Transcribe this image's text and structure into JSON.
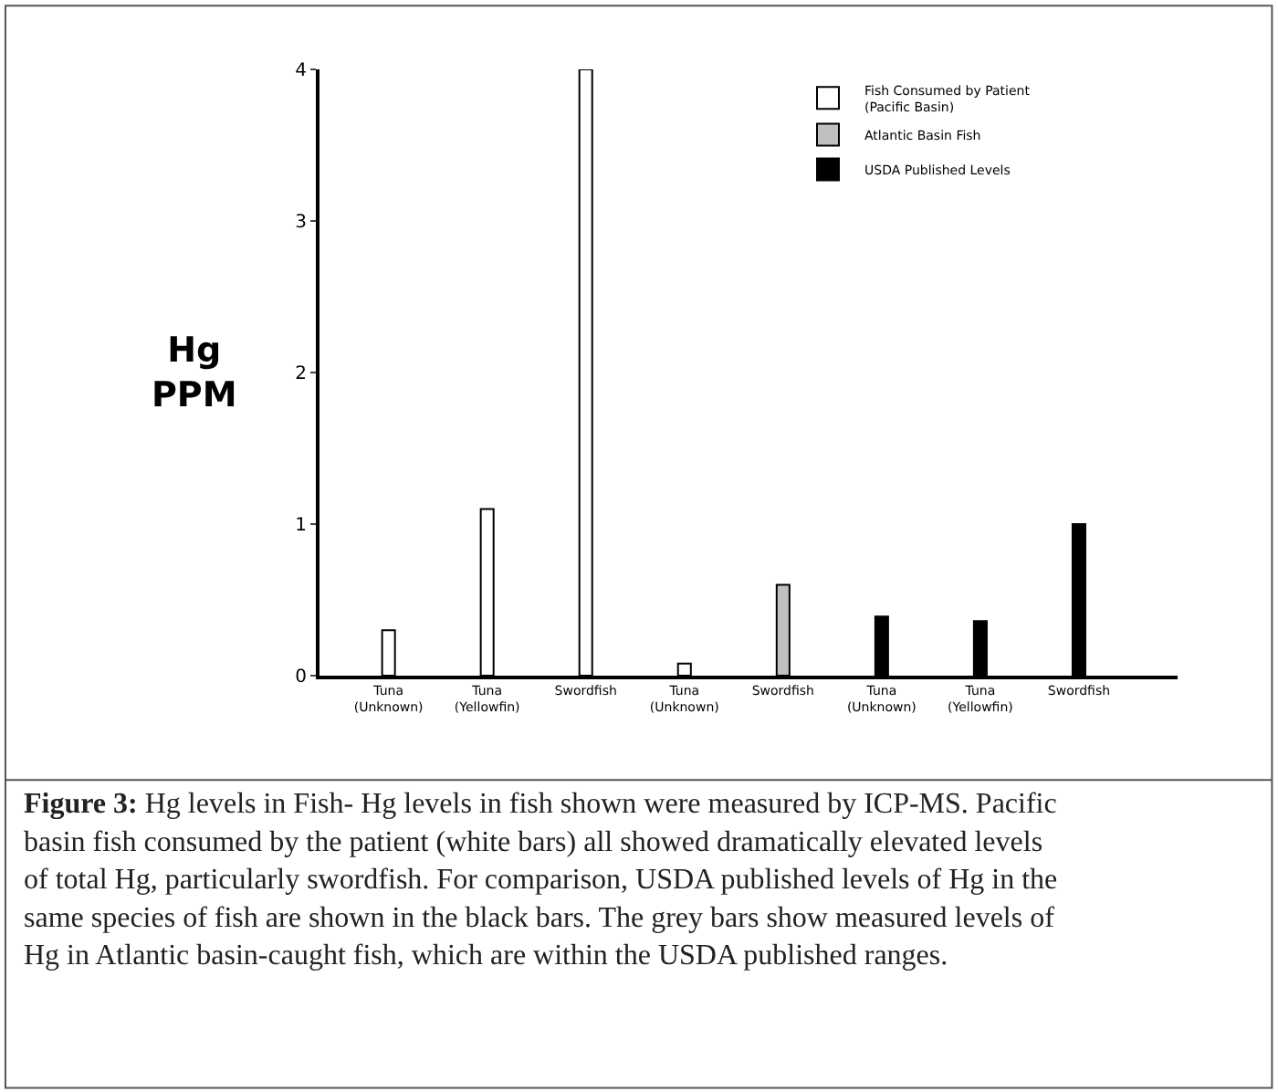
{
  "chart_data": {
    "type": "bar",
    "ylabel": "Hg\nPPM",
    "categories": [
      "Tuna\n(Unknown)",
      "Tuna\n(Yellowfin)",
      "Swordfish",
      "Tuna\n(Unknown)",
      "Swordfish",
      "Tuna\n(Unknown)",
      "Tuna\n(Yellowfin)",
      "Swordfish"
    ],
    "series": [
      {
        "name": "Fish Consumed by Patient\n(Pacific Basin)",
        "color": "#ffffff",
        "values": [
          0.3,
          1.1,
          4.0,
          0.08,
          null,
          null,
          null,
          null
        ]
      },
      {
        "name": "Atlantic Basin Fish",
        "color": "#c0c0c0",
        "values": [
          null,
          null,
          null,
          null,
          0.6,
          null,
          null,
          null
        ]
      },
      {
        "name": "USDA Published Levels",
        "color": "#000000",
        "values": [
          null,
          null,
          null,
          null,
          null,
          0.39,
          0.36,
          1.0
        ]
      }
    ],
    "ylim": [
      0,
      4
    ],
    "yticks": [
      0,
      1,
      2,
      3,
      4
    ],
    "legend": "top right",
    "annotations": [
      "Figure 3: Hg levels in Fish- Hg levels in fish shown were measured by ICP-MS. Pacific basin fish consumed by the patient (white bars) all showed dramatically elevated levels of total Hg, particularly swordfish. For comparison, USDA published levels of Hg in the same species of fish are shown in the black bars. The grey bars show measured levels of Hg in Atlantic basin-caught fish, which are within the USDA published ranges."
    ]
  }
}
